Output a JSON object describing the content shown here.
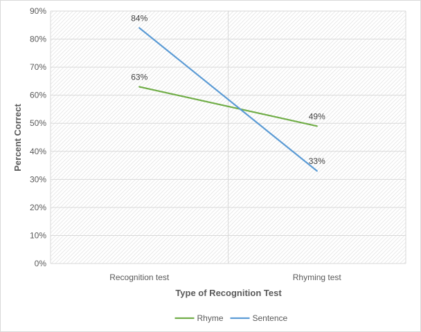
{
  "chart_data": {
    "type": "line",
    "title": "",
    "xlabel": "Type of Recognition Test",
    "ylabel": "Percent Correct",
    "categories": [
      "Recognition test",
      "Rhyming test"
    ],
    "series": [
      {
        "name": "Rhyme",
        "values": [
          63,
          49
        ],
        "labels": [
          "63%",
          "49%"
        ],
        "color": "#70ad47"
      },
      {
        "name": "Sentence",
        "values": [
          84,
          33
        ],
        "labels": [
          "84%",
          "33%"
        ],
        "color": "#5b9bd5"
      }
    ],
    "ylim": [
      0,
      90
    ],
    "yticks": [
      0,
      10,
      20,
      30,
      40,
      50,
      60,
      70,
      80,
      90
    ],
    "ytick_labels": [
      "0%",
      "10%",
      "20%",
      "30%",
      "40%",
      "50%",
      "60%",
      "70%",
      "80%",
      "90%"
    ],
    "grid": true,
    "plot_background": "hatched",
    "legend_position": "bottom"
  }
}
